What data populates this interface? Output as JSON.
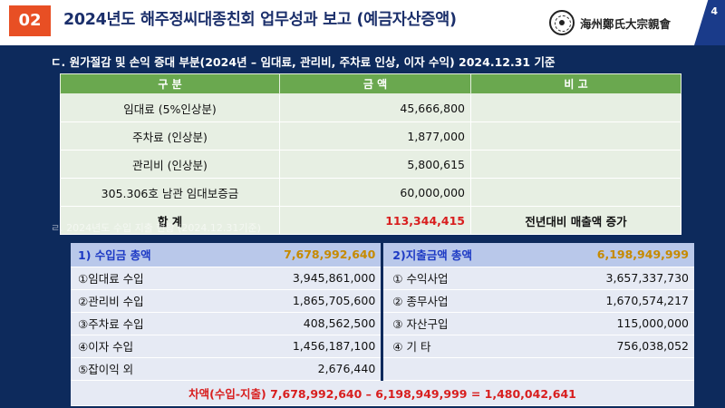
{
  "header": {
    "number": "02",
    "title": "2024년도 해주정씨대종친회 업무성과 보고 (예금자산증액)",
    "logo_text": "海州鄭氏大宗親會",
    "page_number": "4"
  },
  "section1": {
    "title": "ㄷ. 원가절감 및 손익 증대 부분(2024년 – 임대료, 관리비, 주차료 인상, 이자 수익) 2024.12.31 기준",
    "columns": [
      "구 분",
      "금 액",
      "비 고"
    ],
    "rows": [
      {
        "label": "임대료 (5%인상분)",
        "amount": "45,666,800",
        "note": ""
      },
      {
        "label": "주차료 (인상분)",
        "amount": "1,877,000",
        "note": ""
      },
      {
        "label": "관리비 (인상분)",
        "amount": "5,800,615",
        "note": ""
      },
      {
        "label": "305.306호 남관 임대보증금",
        "amount": "60,000,000",
        "note": ""
      }
    ],
    "total": {
      "label": "합 계",
      "amount": "113,344,415",
      "note": "전년대비 매출액 증가"
    }
  },
  "section2": {
    "title": "ㄹ. 2024년도 수입 지출 현황 (2024.12.31기준)",
    "income_header": {
      "label": "1) 수입금 총액",
      "amount": "7,678,992,640"
    },
    "expense_header": {
      "label": "2)지출금액 총액",
      "amount": "6,198,949,999"
    },
    "rows": [
      {
        "in_label": "①임대료 수입",
        "in_amount": "3,945,861,000",
        "out_label": "① 수익사업",
        "out_amount": "3,657,337,730"
      },
      {
        "in_label": "②관리비 수입",
        "in_amount": "1,865,705,600",
        "out_label": "② 종무사업",
        "out_amount": "1,670,574,217"
      },
      {
        "in_label": "③주차료 수입",
        "in_amount": "408,562,500",
        "out_label": "③ 자산구입",
        "out_amount": "115,000,000"
      },
      {
        "in_label": "④이자 수입",
        "in_amount": "1,456,187,100",
        "out_label": "④ 기 타",
        "out_amount": "756,038,052"
      },
      {
        "in_label": "⑤잡이익 외",
        "in_amount": "2,676,440",
        "out_label": "",
        "out_amount": ""
      }
    ],
    "difference": "차액(수입-지출) 7,678,992,640 – 6,198,949,999 = 1,480,042,641"
  },
  "colors": {
    "background": "#0d2a5c",
    "number_box": "#e84f24",
    "table_header_green": "#6aa84f",
    "total_red": "#d81e1e",
    "income_header_blue": "#1c39c4"
  },
  "icons": [
    "clan-seal-logo"
  ]
}
